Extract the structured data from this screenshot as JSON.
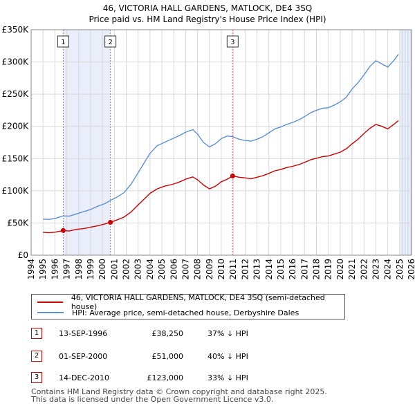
{
  "title": "46, VICTORIA HALL GARDENS, MATLOCK, DE4 3SQ",
  "subtitle": "Price paid vs. HM Land Registry's House Price Index (HPI)",
  "chart_data": {
    "type": "line",
    "xlim": [
      1994,
      2026
    ],
    "ylim": [
      0,
      350000
    ],
    "x_ticks": [
      1994,
      1995,
      1996,
      1997,
      1998,
      1999,
      2000,
      2001,
      2002,
      2003,
      2004,
      2005,
      2006,
      2007,
      2008,
      2009,
      2010,
      2011,
      2012,
      2013,
      2014,
      2015,
      2016,
      2017,
      2018,
      2019,
      2020,
      2021,
      2022,
      2023,
      2024,
      2025,
      2026
    ],
    "y_ticks": [
      {
        "value": 0,
        "label": "£0"
      },
      {
        "value": 50000,
        "label": "£50K"
      },
      {
        "value": 100000,
        "label": "£100K"
      },
      {
        "value": 150000,
        "label": "£150K"
      },
      {
        "value": 200000,
        "label": "£200K"
      },
      {
        "value": 250000,
        "label": "£250K"
      },
      {
        "value": 300000,
        "label": "£300K"
      },
      {
        "value": 350000,
        "label": "£350K"
      }
    ],
    "grid": true,
    "shaded_spans": [
      [
        1996.7,
        2000.67
      ],
      [
        2025.0,
        2026.0
      ]
    ],
    "series": [
      {
        "name": "46, VICTORIA HALL GARDENS, MATLOCK, DE4 3SQ (semi-detached house)",
        "color": "#cc0000",
        "points": [
          [
            1995.0,
            35500
          ],
          [
            1995.5,
            34800
          ],
          [
            1996.0,
            35600
          ],
          [
            1996.7,
            38250
          ],
          [
            1997.2,
            37500
          ],
          [
            1997.8,
            40000
          ],
          [
            1998.5,
            41500
          ],
          [
            1999.0,
            43500
          ],
          [
            1999.6,
            45500
          ],
          [
            2000.2,
            48500
          ],
          [
            2000.67,
            51000
          ],
          [
            2001.2,
            54500
          ],
          [
            2001.8,
            59000
          ],
          [
            2002.4,
            67000
          ],
          [
            2003.0,
            78000
          ],
          [
            2003.5,
            87000
          ],
          [
            2004.0,
            96000
          ],
          [
            2004.6,
            103000
          ],
          [
            2005.2,
            107000
          ],
          [
            2005.8,
            109500
          ],
          [
            2006.4,
            113000
          ],
          [
            2007.0,
            118000
          ],
          [
            2007.6,
            121500
          ],
          [
            2008.0,
            117000
          ],
          [
            2008.5,
            109000
          ],
          [
            2009.0,
            103000
          ],
          [
            2009.5,
            107000
          ],
          [
            2010.0,
            114000
          ],
          [
            2010.5,
            118000
          ],
          [
            2010.95,
            123000
          ],
          [
            2011.5,
            121000
          ],
          [
            2012.0,
            120000
          ],
          [
            2012.5,
            118500
          ],
          [
            2013.0,
            121000
          ],
          [
            2013.5,
            123500
          ],
          [
            2014.0,
            127000
          ],
          [
            2014.5,
            131000
          ],
          [
            2015.0,
            133000
          ],
          [
            2015.5,
            136000
          ],
          [
            2016.0,
            138000
          ],
          [
            2016.5,
            140500
          ],
          [
            2017.0,
            144000
          ],
          [
            2017.5,
            148000
          ],
          [
            2018.0,
            150500
          ],
          [
            2018.5,
            153000
          ],
          [
            2019.0,
            154000
          ],
          [
            2019.5,
            157000
          ],
          [
            2020.0,
            160000
          ],
          [
            2020.5,
            165000
          ],
          [
            2021.0,
            173000
          ],
          [
            2021.5,
            180000
          ],
          [
            2022.0,
            189000
          ],
          [
            2022.5,
            197000
          ],
          [
            2023.0,
            203000
          ],
          [
            2023.5,
            200000
          ],
          [
            2024.0,
            196000
          ],
          [
            2024.5,
            203000
          ],
          [
            2024.9,
            209000
          ]
        ]
      },
      {
        "name": "HPI: Average price, semi-detached house, Derbyshire Dales",
        "color": "#5b8fd6",
        "points": [
          [
            1995.0,
            56000
          ],
          [
            1995.5,
            55500
          ],
          [
            1996.0,
            57000
          ],
          [
            1996.7,
            61000
          ],
          [
            1997.2,
            60500
          ],
          [
            1997.8,
            64000
          ],
          [
            1998.5,
            68000
          ],
          [
            1999.0,
            71000
          ],
          [
            1999.6,
            76000
          ],
          [
            2000.2,
            80000
          ],
          [
            2000.67,
            85000
          ],
          [
            2001.2,
            90000
          ],
          [
            2001.8,
            97000
          ],
          [
            2002.4,
            110000
          ],
          [
            2003.0,
            128000
          ],
          [
            2003.5,
            143000
          ],
          [
            2004.0,
            158000
          ],
          [
            2004.6,
            170000
          ],
          [
            2005.2,
            175000
          ],
          [
            2005.8,
            180000
          ],
          [
            2006.4,
            185000
          ],
          [
            2007.0,
            191000
          ],
          [
            2007.6,
            195000
          ],
          [
            2008.0,
            188000
          ],
          [
            2008.5,
            175000
          ],
          [
            2009.0,
            168000
          ],
          [
            2009.5,
            173000
          ],
          [
            2010.0,
            181000
          ],
          [
            2010.5,
            185000
          ],
          [
            2010.95,
            184000
          ],
          [
            2011.5,
            180000
          ],
          [
            2012.0,
            178000
          ],
          [
            2012.5,
            177000
          ],
          [
            2013.0,
            180000
          ],
          [
            2013.5,
            184000
          ],
          [
            2014.0,
            190000
          ],
          [
            2014.5,
            196000
          ],
          [
            2015.0,
            199000
          ],
          [
            2015.5,
            203000
          ],
          [
            2016.0,
            206000
          ],
          [
            2016.5,
            210000
          ],
          [
            2017.0,
            215000
          ],
          [
            2017.5,
            221000
          ],
          [
            2018.0,
            225000
          ],
          [
            2018.5,
            228000
          ],
          [
            2019.0,
            229000
          ],
          [
            2019.5,
            233000
          ],
          [
            2020.0,
            238000
          ],
          [
            2020.5,
            245000
          ],
          [
            2021.0,
            258000
          ],
          [
            2021.5,
            268000
          ],
          [
            2022.0,
            280000
          ],
          [
            2022.5,
            293000
          ],
          [
            2023.0,
            302000
          ],
          [
            2023.5,
            297000
          ],
          [
            2024.0,
            292000
          ],
          [
            2024.5,
            302000
          ],
          [
            2024.9,
            312000
          ]
        ]
      }
    ],
    "sale_markers": [
      {
        "label": "1",
        "year": 1996.7,
        "value": 38250
      },
      {
        "label": "2",
        "year": 2000.67,
        "value": 51000
      },
      {
        "label": "3",
        "year": 2010.95,
        "value": 123000
      }
    ]
  },
  "legend": {
    "property_label": "46, VICTORIA HALL GARDENS, MATLOCK, DE4 3SQ (semi-detached house)",
    "hpi_label": "HPI: Average price, semi-detached house, Derbyshire Dales"
  },
  "sales": [
    {
      "num": "1",
      "date": "13-SEP-1996",
      "price": "£38,250",
      "diff": "37% ↓ HPI"
    },
    {
      "num": "2",
      "date": "01-SEP-2000",
      "price": "£51,000",
      "diff": "40% ↓ HPI"
    },
    {
      "num": "3",
      "date": "14-DEC-2010",
      "price": "£123,000",
      "diff": "33% ↓ HPI"
    }
  ],
  "footer": {
    "line1": "Contains HM Land Registry data © Crown copyright and database right 2025.",
    "line2": "This data is licensed under the Open Government Licence v3.0."
  }
}
